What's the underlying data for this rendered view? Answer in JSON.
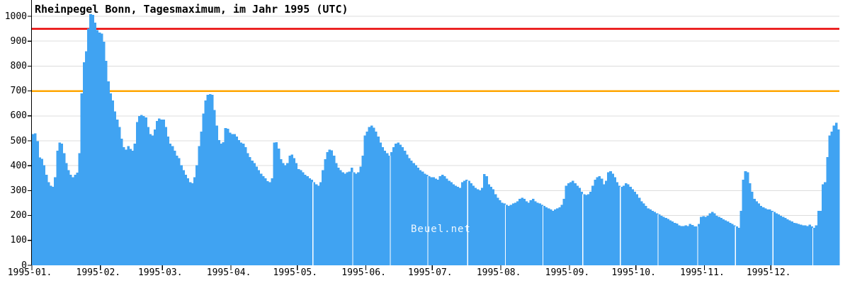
{
  "header": {
    "title": "Rheinpegel Bonn, Tagesmaximum, im Jahr 1995 (UTC)"
  },
  "watermark": "Beuel.net",
  "colors": {
    "bar": "#40a3f2",
    "reference_high": "#e80000",
    "reference_mid": "#ffa500",
    "grid": "#dcdcdc",
    "axis": "#000000",
    "background": "#ffffff",
    "watermark": "#ffffff"
  },
  "chart_data": {
    "type": "bar",
    "title": "Rheinpegel Bonn, Tagesmaximum, im Jahr 1995 (UTC)",
    "xlabel": "",
    "ylabel": "",
    "ylim": [
      0,
      1050
    ],
    "grid": true,
    "legend": "none",
    "y_ticks": [
      0,
      100,
      200,
      300,
      400,
      500,
      600,
      700,
      800,
      900,
      1000
    ],
    "x_tick_labels": [
      "1995-01.",
      "1995-02.",
      "1995-03.",
      "1995-04.",
      "1995-05.",
      "1995-06.",
      "1995-07.",
      "1995-08.",
      "1995-09.",
      "1995-10.",
      "1995-11.",
      "1995-12."
    ],
    "month_days": [
      31,
      28,
      31,
      30,
      31,
      30,
      31,
      31,
      30,
      31,
      30,
      31
    ],
    "reference_lines": [
      {
        "value": 950,
        "color": "#e80000"
      },
      {
        "value": 700,
        "color": "#ffa500"
      }
    ],
    "gap_days": [
      128,
      146,
      163,
      180,
      198,
      215,
      232,
      250,
      267,
      284,
      302,
      319,
      336,
      354
    ],
    "series": [
      {
        "name": "Tagesmaximum",
        "values": [
          527,
          530,
          498,
          433,
          427,
          402,
          363,
          334,
          320,
          315,
          354,
          460,
          493,
          488,
          450,
          411,
          382,
          363,
          354,
          363,
          372,
          450,
          690,
          816,
          860,
          950,
          1008,
          1005,
          975,
          945,
          935,
          930,
          898,
          821,
          739,
          691,
          662,
          618,
          585,
          556,
          508,
          474,
          464,
          478,
          468,
          460,
          488,
          575,
          599,
          604,
          599,
          594,
          556,
          527,
          522,
          546,
          580,
          590,
          585,
          585,
          556,
          517,
          488,
          479,
          460,
          440,
          431,
          402,
          382,
          363,
          349,
          334,
          330,
          354,
          402,
          479,
          537,
          609,
          662,
          684,
          688,
          684,
          623,
          561,
          503,
          488,
          495,
          551,
          548,
          532,
          527,
          527,
          517,
          503,
          493,
          488,
          474,
          450,
          435,
          421,
          411,
          397,
          382,
          368,
          358,
          349,
          338,
          334,
          349,
          493,
          495,
          469,
          426,
          411,
          402,
          411,
          440,
          445,
          431,
          411,
          387,
          382,
          373,
          363,
          358,
          349,
          344,
          334,
          325,
          320,
          334,
          382,
          426,
          455,
          464,
          461,
          440,
          411,
          392,
          382,
          373,
          368,
          373,
          376,
          392,
          373,
          368,
          373,
          397,
          440,
          522,
          537,
          556,
          561,
          552,
          537,
          517,
          493,
          474,
          460,
          450,
          440,
          455,
          474,
          488,
          493,
          484,
          474,
          460,
          445,
          431,
          421,
          411,
          402,
          392,
          382,
          376,
          368,
          363,
          358,
          354,
          354,
          348,
          344,
          358,
          363,
          358,
          348,
          339,
          334,
          325,
          320,
          315,
          311,
          334,
          339,
          344,
          339,
          330,
          320,
          311,
          306,
          301,
          311,
          367,
          358,
          325,
          315,
          306,
          286,
          272,
          262,
          252,
          248,
          243,
          238,
          243,
          248,
          252,
          257,
          267,
          272,
          267,
          257,
          252,
          262,
          267,
          257,
          252,
          248,
          243,
          238,
          233,
          228,
          224,
          219,
          224,
          228,
          233,
          243,
          267,
          320,
          330,
          334,
          339,
          330,
          320,
          311,
          296,
          286,
          282,
          286,
          296,
          320,
          344,
          354,
          358,
          348,
          325,
          339,
          373,
          378,
          368,
          354,
          334,
          320,
          315,
          320,
          330,
          325,
          315,
          306,
          296,
          286,
          272,
          257,
          248,
          238,
          228,
          224,
          219,
          214,
          209,
          205,
          199,
          195,
          190,
          186,
          180,
          176,
          171,
          167,
          161,
          157,
          157,
          161,
          157,
          166,
          162,
          156,
          156,
          166,
          194,
          197,
          194,
          199,
          209,
          214,
          209,
          199,
          194,
          190,
          185,
          180,
          176,
          170,
          166,
          161,
          156,
          151,
          219,
          344,
          378,
          373,
          330,
          296,
          267,
          257,
          248,
          238,
          233,
          228,
          224,
          224,
          219,
          214,
          209,
          204,
          199,
          194,
          190,
          185,
          180,
          176,
          170,
          169,
          166,
          164,
          161,
          161,
          158,
          163,
          156,
          151,
          161,
          219,
          219,
          325,
          334,
          435,
          522,
          537,
          561,
          573,
          546
        ]
      }
    ]
  }
}
